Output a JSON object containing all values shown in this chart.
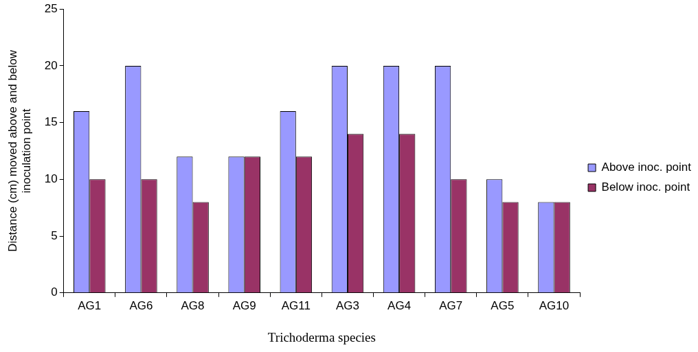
{
  "chart_data": {
    "type": "bar",
    "xlabel": "Trichoderma species",
    "ylabel": "Distance (cm) moved above and below inoculation point",
    "categories": [
      "AG1",
      "AG6",
      "AG8",
      "AG9",
      "AG11",
      "AG3",
      "AG4",
      "AG7",
      "AG5",
      "AG10"
    ],
    "series": [
      {
        "name": "Above inoc. point",
        "color": "#9999ff",
        "values": [
          16,
          20,
          12,
          12,
          16,
          20,
          20,
          20,
          10,
          8
        ]
      },
      {
        "name": "Below inoc. point",
        "color": "#993366",
        "values": [
          10,
          10,
          8,
          12,
          12,
          14,
          14,
          10,
          8,
          8
        ]
      }
    ],
    "ylim": [
      0,
      25
    ],
    "yticks": [
      0,
      5,
      10,
      15,
      20,
      25
    ],
    "grid": false,
    "legend": "right"
  }
}
